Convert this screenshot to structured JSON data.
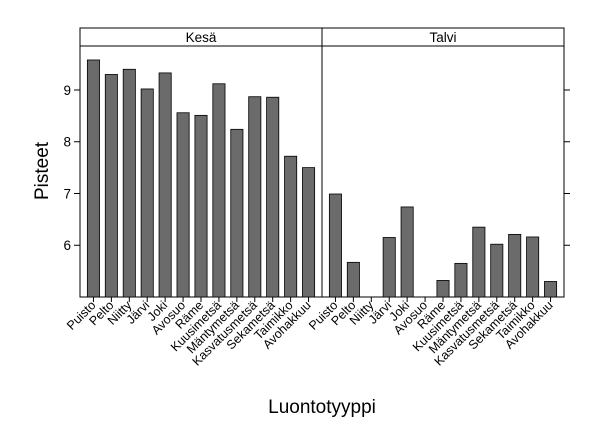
{
  "chart_data": {
    "type": "bar",
    "xlabel": "Luontotyyppi",
    "ylabel": "Pisteet",
    "ylim": [
      5.0,
      9.85
    ],
    "yticks": [
      6,
      7,
      8,
      9
    ],
    "bar_color": "#6b6b6b",
    "strip_color": "#ffffff",
    "categories": [
      "Puisto",
      "Pelto",
      "Niitty",
      "Järvi",
      "Joki",
      "Avosuo",
      "Räme",
      "Kuusimetsä",
      "Mäntymetsä",
      "Kasvatusmetsä",
      "Sekametsä",
      "Taimikko",
      "Avohakkuu"
    ],
    "panels": [
      {
        "name": "Kesä",
        "values": [
          9.58,
          9.3,
          9.4,
          9.02,
          9.33,
          8.56,
          8.51,
          9.12,
          8.24,
          8.87,
          8.86,
          7.72,
          7.5
        ]
      },
      {
        "name": "Talvi",
        "values": [
          6.99,
          5.67,
          null,
          6.15,
          6.74,
          null,
          5.32,
          5.65,
          6.35,
          6.02,
          6.21,
          6.16,
          5.3
        ]
      }
    ]
  }
}
